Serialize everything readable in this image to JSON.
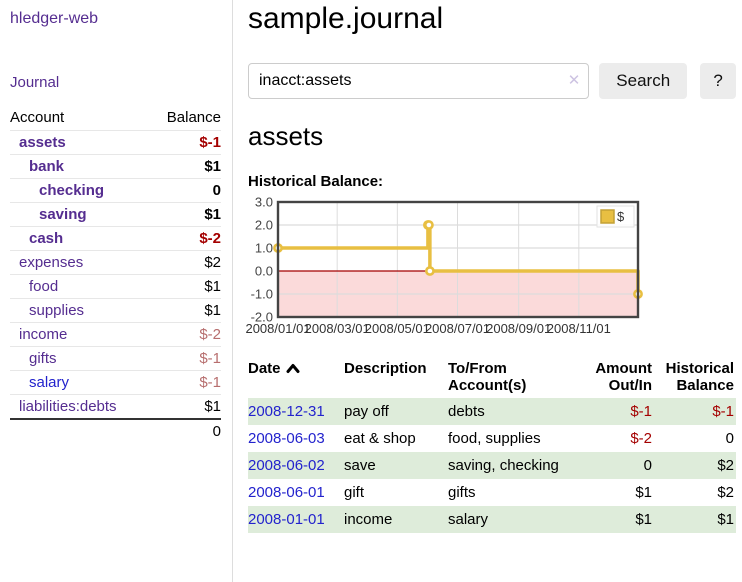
{
  "sidebar": {
    "brand": "hledger-web",
    "journal_link": "Journal",
    "accounts_table": {
      "headers": [
        "Account",
        "Balance"
      ],
      "rows": [
        {
          "name": "assets",
          "indent": 1,
          "bold": true,
          "balance": "$-1",
          "balance_style": "neg-strong"
        },
        {
          "name": "bank",
          "indent": 2,
          "bold": true,
          "balance": "$1",
          "balance_style": "pos"
        },
        {
          "name": "checking",
          "indent": 3,
          "bold": true,
          "balance": "0",
          "balance_style": "pos"
        },
        {
          "name": "saving",
          "indent": 3,
          "bold": true,
          "balance": "$1",
          "balance_style": "pos"
        },
        {
          "name": "cash",
          "indent": 2,
          "bold": true,
          "balance": "$-2",
          "balance_style": "neg-strong"
        },
        {
          "name": "expenses",
          "indent": 1,
          "bold": false,
          "balance": "$2",
          "balance_style": "pos"
        },
        {
          "name": "food",
          "indent": 2,
          "bold": false,
          "balance": "$1",
          "balance_style": "pos"
        },
        {
          "name": "supplies",
          "indent": 2,
          "bold": false,
          "balance": "$1",
          "balance_style": "pos"
        },
        {
          "name": "income",
          "indent": 1,
          "bold": false,
          "balance": "$-2",
          "balance_style": "neg-soft"
        },
        {
          "name": "gifts",
          "indent": 2,
          "bold": false,
          "balance": "$-1",
          "balance_style": "neg-soft"
        },
        {
          "name": "salary",
          "indent": 2,
          "bold": false,
          "balance": "$-1",
          "balance_style": "neg-soft",
          "link_color": "blue"
        },
        {
          "name": "liabilities:debts",
          "indent": 1,
          "bold": false,
          "balance": "$1",
          "balance_style": "pos"
        }
      ],
      "total": "0"
    }
  },
  "header": {
    "title": "sample.journal"
  },
  "search": {
    "value": "inacct:assets",
    "clear_icon": "✕",
    "button_label": "Search",
    "help_label": "?"
  },
  "account_page": {
    "title": "assets",
    "chart_label": "Historical Balance:"
  },
  "chart_data": {
    "type": "line",
    "step": true,
    "title": "Historical Balance",
    "series": [
      {
        "name": "$",
        "color": "#e8bf42",
        "points": [
          [
            "2008-01-01",
            1
          ],
          [
            "2008-06-01",
            2
          ],
          [
            "2008-06-02",
            2
          ],
          [
            "2008-06-03",
            0
          ],
          [
            "2008-12-31",
            -1
          ]
        ]
      }
    ],
    "xrange": [
      "2008-01-01",
      "2008-12-31"
    ],
    "ylim": [
      -2,
      3
    ],
    "yticks": [
      "3.0",
      "2.0",
      "1.0",
      "0.0",
      "-1.0",
      "-2.0"
    ],
    "xticks": [
      "2008/01/01",
      "2008/03/01",
      "2008/05/01",
      "2008/07/01",
      "2008/09/01",
      "2008/11/01"
    ],
    "grid": true,
    "legend_position": "top-right",
    "legend_label": "$",
    "negative_region_fill": "#fbdada",
    "zero_line_color": "#a40000",
    "border_color": "#444444",
    "grid_color": "#dcdcdc"
  },
  "register_table": {
    "headers": [
      "Date",
      "Description",
      "To/From Account(s)",
      "Amount Out/In",
      "Historical Balance"
    ],
    "sort_icon": "chevron-up",
    "rows": [
      {
        "date": "2008-12-31",
        "description": "pay off",
        "accounts": "debts",
        "amount": "$-1",
        "amount_neg": true,
        "balance": "$-1",
        "balance_neg": true,
        "stripe": true
      },
      {
        "date": "2008-06-03",
        "description": "eat & shop",
        "accounts": "food, supplies",
        "amount": "$-2",
        "amount_neg": true,
        "balance": "0",
        "balance_neg": false,
        "stripe": false
      },
      {
        "date": "2008-06-02",
        "description": "save",
        "accounts": "saving, checking",
        "amount": "0",
        "amount_neg": false,
        "balance": "$2",
        "balance_neg": false,
        "stripe": true
      },
      {
        "date": "2008-06-01",
        "description": "gift",
        "accounts": "gifts",
        "amount": "$1",
        "amount_neg": false,
        "balance": "$2",
        "balance_neg": false,
        "stripe": false
      },
      {
        "date": "2008-01-01",
        "description": "income",
        "accounts": "salary",
        "amount": "$1",
        "amount_neg": false,
        "balance": "$1",
        "balance_neg": false,
        "stripe": true
      }
    ]
  },
  "colors": {
    "link_purple": "#552d90",
    "link_blue": "#2323cd",
    "negative_strong": "#a40000",
    "negative_soft": "#b76e6e",
    "stripe_green": "#deecda",
    "chart_gold": "#e8bf42",
    "chart_pink": "#fbdada"
  }
}
